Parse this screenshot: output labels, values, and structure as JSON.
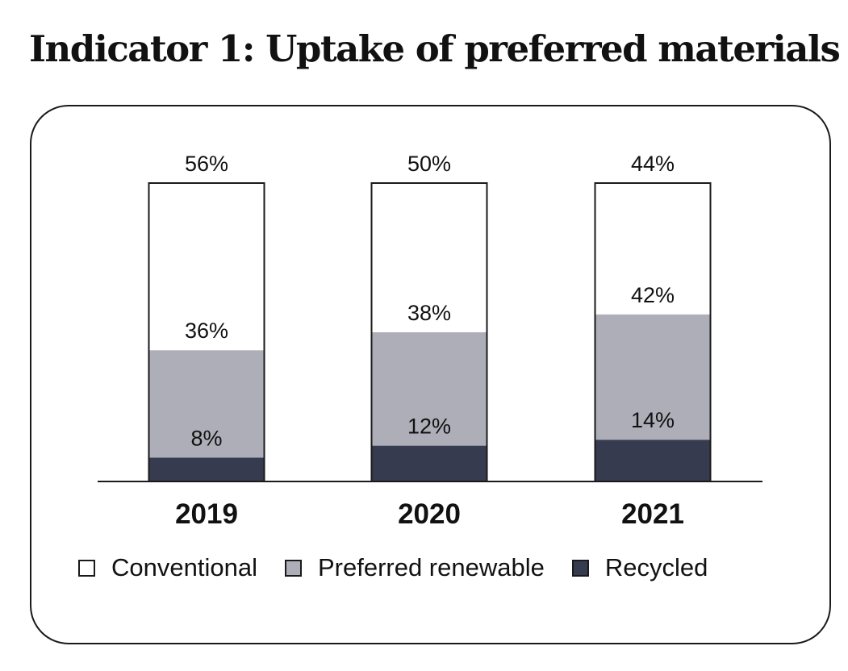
{
  "title": "Indicator 1: Uptake of preferred materials",
  "chart_data": {
    "type": "bar",
    "stacked": true,
    "categories": [
      "2019",
      "2020",
      "2021"
    ],
    "series": [
      {
        "name": "Recycled",
        "values": [
          8,
          12,
          14
        ],
        "labels": [
          "8%",
          "12%",
          "14%"
        ],
        "color": "#373b4f"
      },
      {
        "name": "Preferred renewable",
        "values": [
          36,
          38,
          42
        ],
        "labels": [
          "36%",
          "38%",
          "42%"
        ],
        "color": "#aeaeb8"
      },
      {
        "name": "Conventional",
        "values": [
          56,
          50,
          44
        ],
        "labels": [
          "56%",
          "50%",
          "44%"
        ],
        "color": "#ffffff"
      }
    ],
    "ylim": [
      0,
      100
    ],
    "grid": false,
    "legend_position": "bottom",
    "legend": [
      "Conventional",
      "Preferred renewable",
      "Recycled"
    ]
  }
}
